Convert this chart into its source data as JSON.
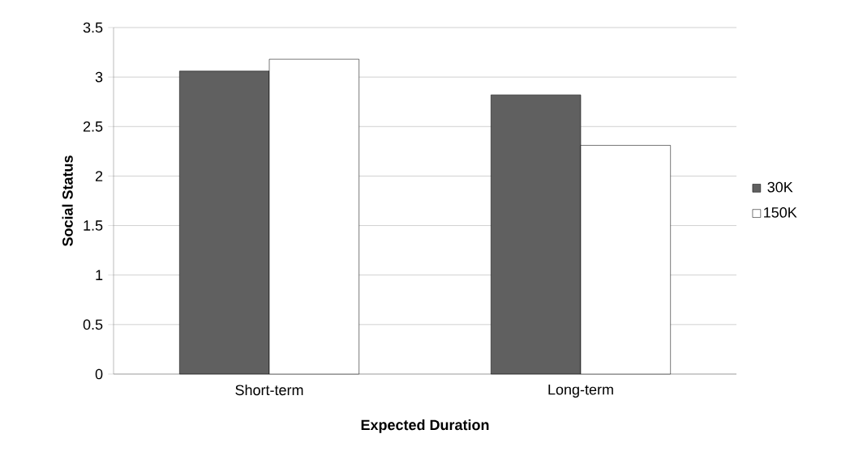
{
  "chart_data": {
    "type": "bar",
    "xlabel": "Expected Duration",
    "ylabel": "Social Status",
    "categories": [
      "Short-term",
      "Long-term"
    ],
    "series": [
      {
        "name": "30K",
        "color": "#606060",
        "values": [
          3.06,
          2.82
        ]
      },
      {
        "name": "150K",
        "color": "#ffffff",
        "values": [
          3.18,
          2.31
        ]
      }
    ],
    "ylim": [
      0,
      3.5
    ],
    "yticks": [
      0,
      0.5,
      1,
      1.5,
      2,
      2.5,
      3,
      3.5
    ],
    "grid": "y",
    "legend": "right"
  }
}
